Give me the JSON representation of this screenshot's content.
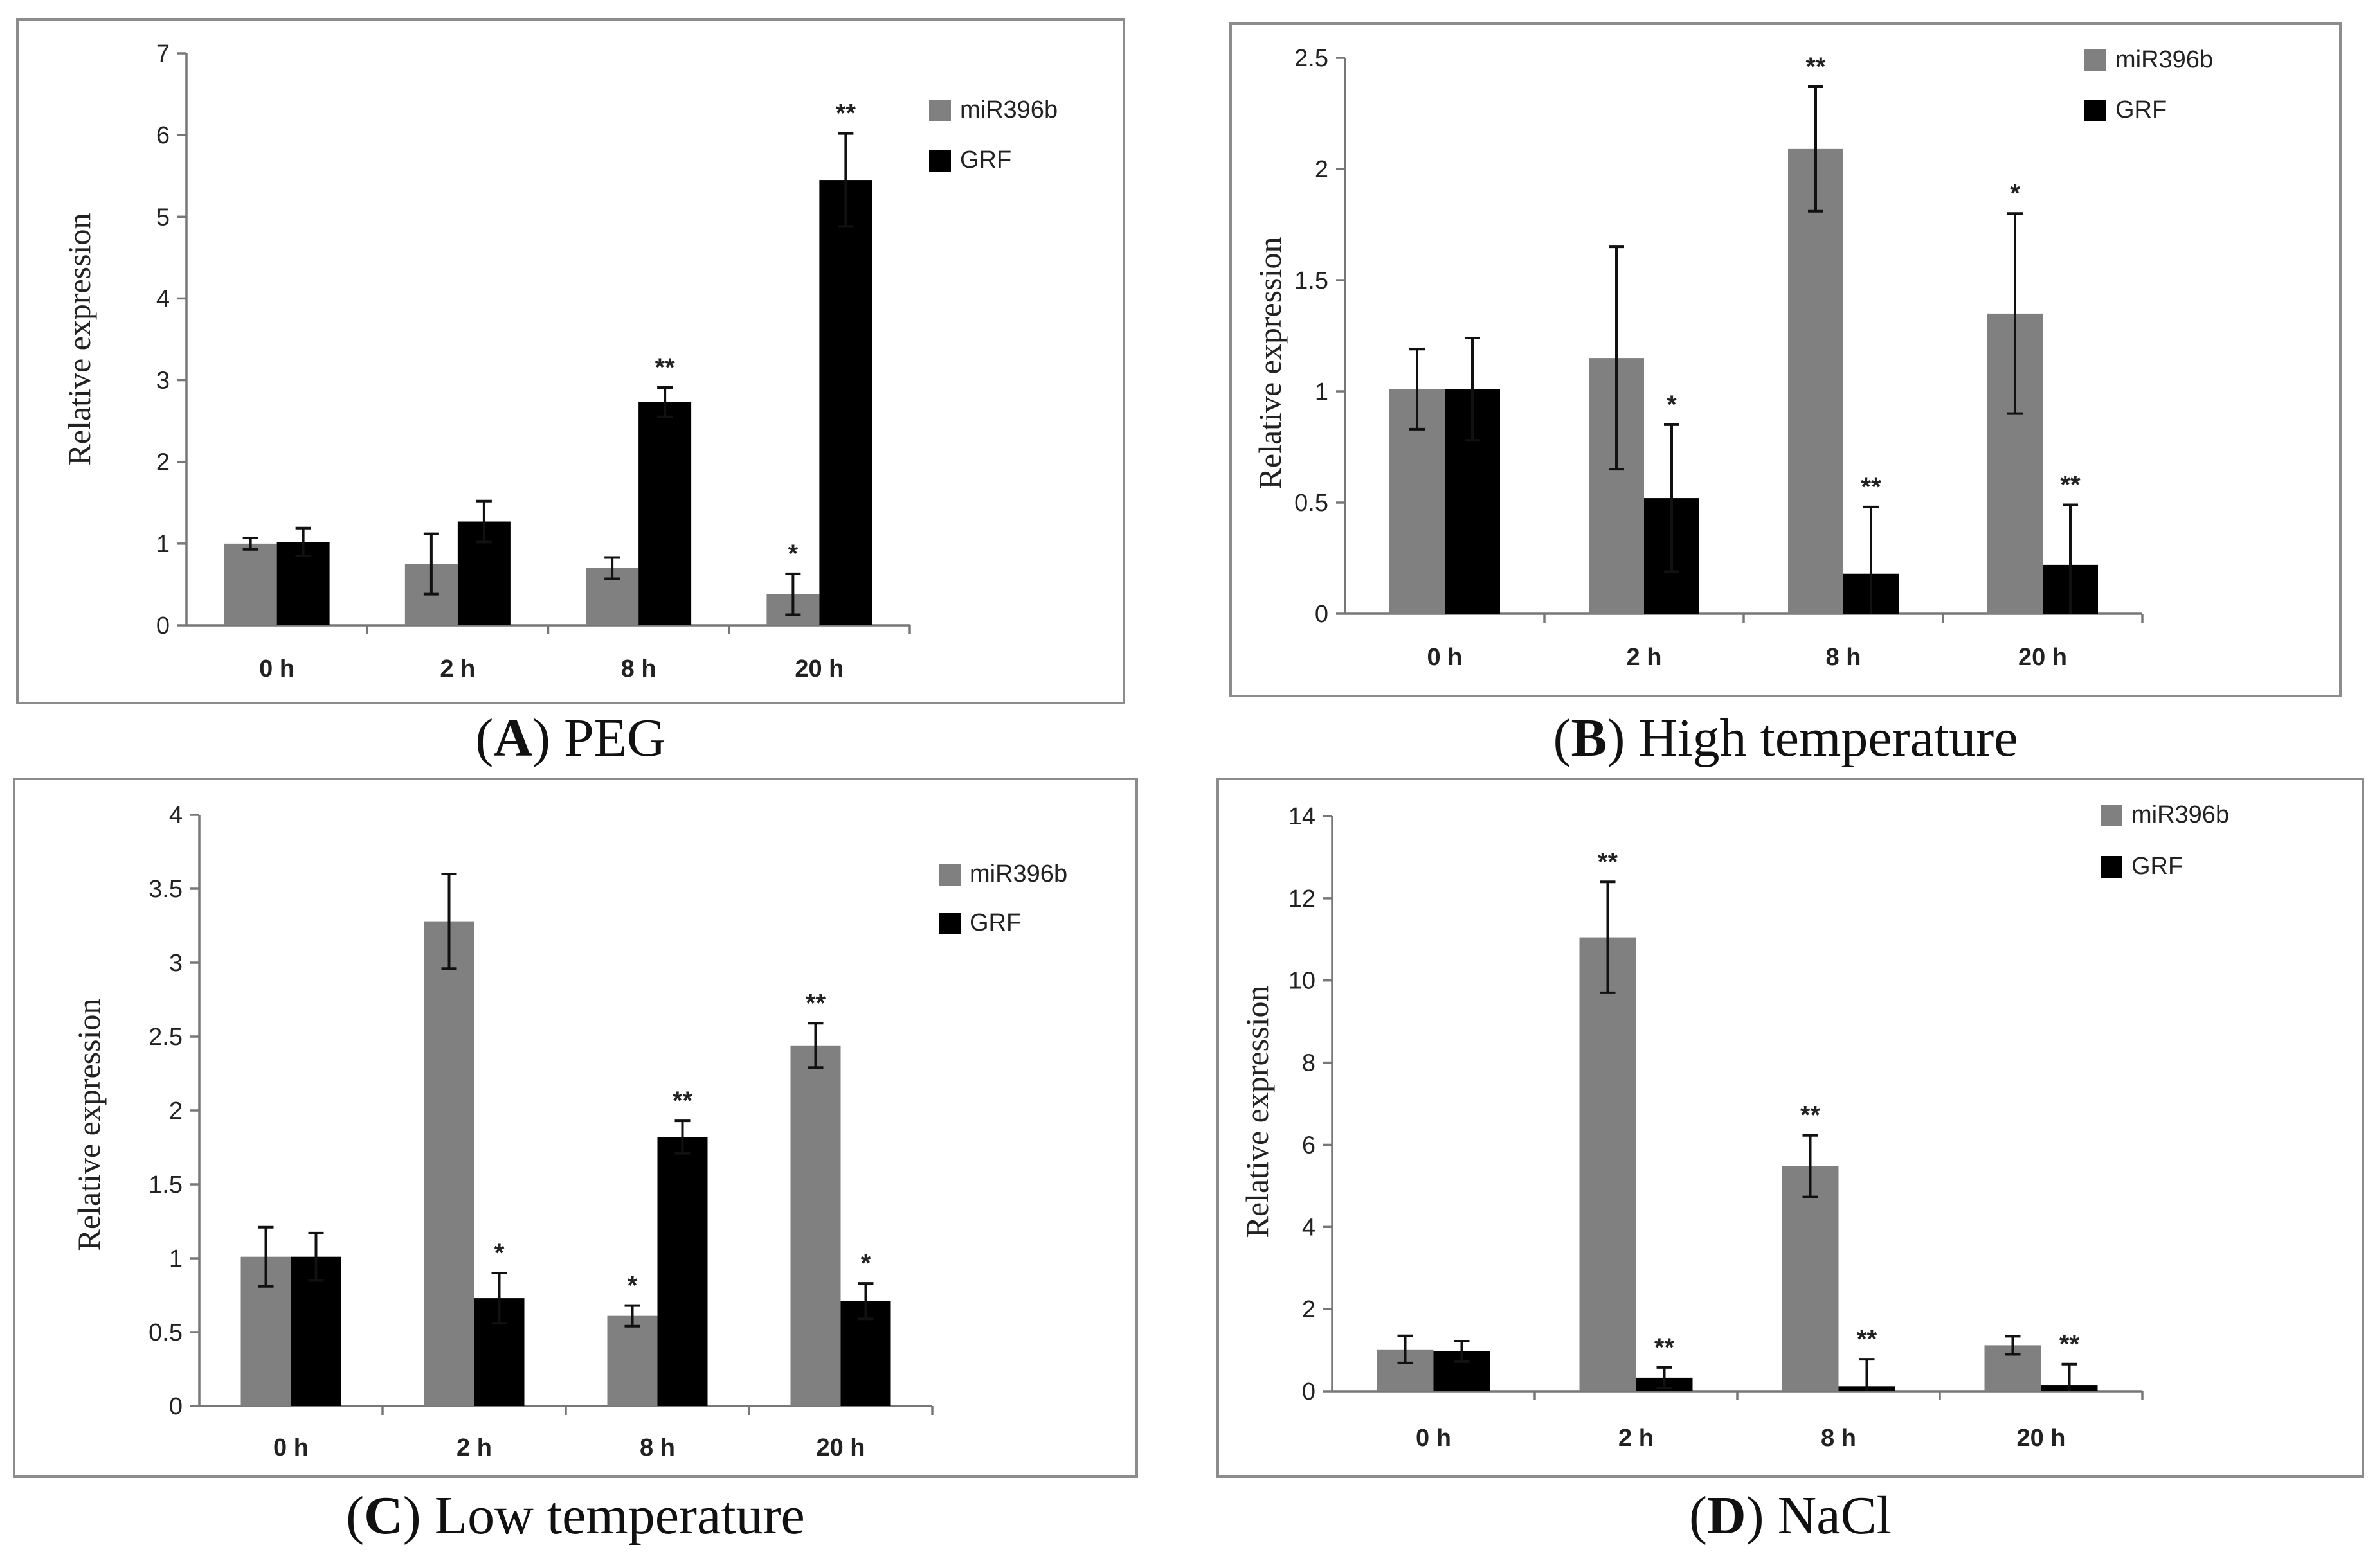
{
  "chart_data": [
    {
      "panel": "A",
      "title": "PEG",
      "type": "bar",
      "ylabel": "Relative expression",
      "ylim": [
        0,
        7
      ],
      "yticks": [
        0,
        1,
        2,
        3,
        4,
        5,
        6,
        7
      ],
      "ytick_labels": [
        "0",
        "1",
        "2",
        "3",
        "4",
        "5",
        "6",
        "7"
      ],
      "categories": [
        "0 h",
        "2 h",
        "8 h",
        "20 h"
      ],
      "series": [
        {
          "name": "miR396b",
          "color": "#808080",
          "values": [
            1.0,
            0.75,
            0.7,
            0.38
          ],
          "errors": [
            0.07,
            0.37,
            0.13,
            0.25
          ],
          "sig": [
            "",
            "",
            "",
            "*"
          ]
        },
        {
          "name": "GRF",
          "color": "#000000",
          "values": [
            1.02,
            1.27,
            2.73,
            5.45
          ],
          "errors": [
            0.17,
            0.25,
            0.18,
            0.57
          ],
          "sig": [
            "",
            "",
            "**",
            "**"
          ]
        }
      ]
    },
    {
      "panel": "B",
      "title": "High temperature",
      "type": "bar",
      "ylabel": "Relative expression",
      "ylim": [
        0,
        2.5
      ],
      "yticks": [
        0,
        0.5,
        1,
        1.5,
        2,
        2.5
      ],
      "ytick_labels": [
        "0",
        "0.5",
        "1",
        "1.5",
        "2",
        "2.5"
      ],
      "categories": [
        "0 h",
        "2 h",
        "8 h",
        "20 h"
      ],
      "series": [
        {
          "name": "miR396b",
          "color": "#808080",
          "values": [
            1.01,
            1.15,
            2.09,
            1.35
          ],
          "errors": [
            0.18,
            0.5,
            0.28,
            0.45
          ],
          "sig": [
            "",
            "",
            "**",
            "*"
          ]
        },
        {
          "name": "GRF",
          "color": "#000000",
          "values": [
            1.01,
            0.52,
            0.18,
            0.22
          ],
          "errors": [
            0.23,
            0.33,
            0.3,
            0.27
          ],
          "sig": [
            "",
            "*",
            "**",
            "**"
          ]
        }
      ]
    },
    {
      "panel": "C",
      "title": "Low temperature",
      "type": "bar",
      "ylabel": "Relative expression",
      "ylim": [
        0,
        4
      ],
      "yticks": [
        0,
        0.5,
        1,
        1.5,
        2,
        2.5,
        3,
        3.5,
        4
      ],
      "ytick_labels": [
        "0",
        "0.5",
        "1",
        "1.5",
        "2",
        "2.5",
        "3",
        "3.5",
        "4"
      ],
      "categories": [
        "0 h",
        "2 h",
        "8 h",
        "20 h"
      ],
      "series": [
        {
          "name": "miR396b",
          "color": "#808080",
          "values": [
            1.01,
            3.28,
            0.61,
            2.44
          ],
          "errors": [
            0.2,
            0.32,
            0.07,
            0.15
          ],
          "sig": [
            "",
            "",
            "*",
            "**"
          ]
        },
        {
          "name": "GRF",
          "color": "#000000",
          "values": [
            1.01,
            0.73,
            1.82,
            0.71
          ],
          "errors": [
            0.16,
            0.17,
            0.11,
            0.12
          ],
          "sig": [
            "",
            "*",
            "**",
            "*"
          ]
        }
      ]
    },
    {
      "panel": "D",
      "title": "NaCl",
      "type": "bar",
      "ylabel": "Relative expression",
      "ylim": [
        0,
        14
      ],
      "yticks": [
        0,
        2,
        4,
        6,
        8,
        10,
        12,
        14
      ],
      "ytick_labels": [
        "0",
        "2",
        "4",
        "6",
        "8",
        "10",
        "12",
        "14"
      ],
      "categories": [
        "0 h",
        "2 h",
        "8 h",
        "20 h"
      ],
      "series": [
        {
          "name": "miR396b",
          "color": "#808080",
          "values": [
            1.02,
            11.05,
            5.48,
            1.12
          ],
          "errors": [
            0.33,
            1.35,
            0.75,
            0.22
          ],
          "sig": [
            "",
            "**",
            "**",
            ""
          ]
        },
        {
          "name": "GRF",
          "color": "#000000",
          "values": [
            0.97,
            0.33,
            0.12,
            0.14
          ],
          "errors": [
            0.25,
            0.25,
            0.66,
            0.52
          ],
          "sig": [
            "",
            "**",
            "**",
            "**"
          ]
        }
      ]
    }
  ],
  "captions": [
    {
      "letter": "A",
      "text": ") PEG"
    },
    {
      "letter": "B",
      "text": ") High temperature"
    },
    {
      "letter": "C",
      "text": ") Low temperature"
    },
    {
      "letter": "D",
      "text": ") NaCl"
    }
  ]
}
